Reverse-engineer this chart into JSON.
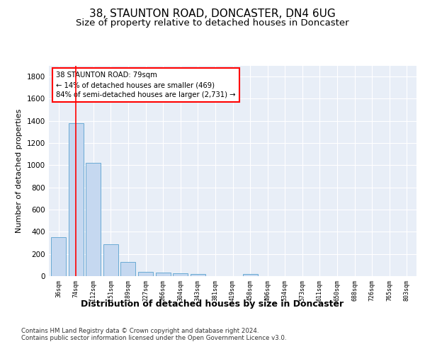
{
  "title1": "38, STAUNTON ROAD, DONCASTER, DN4 6UG",
  "title2": "Size of property relative to detached houses in Doncaster",
  "xlabel": "Distribution of detached houses by size in Doncaster",
  "ylabel": "Number of detached properties",
  "categories": [
    "36sqm",
    "74sqm",
    "112sqm",
    "151sqm",
    "189sqm",
    "227sqm",
    "266sqm",
    "304sqm",
    "343sqm",
    "381sqm",
    "419sqm",
    "458sqm",
    "496sqm",
    "534sqm",
    "573sqm",
    "611sqm",
    "650sqm",
    "688sqm",
    "726sqm",
    "765sqm",
    "803sqm"
  ],
  "values": [
    350,
    1380,
    1020,
    285,
    125,
    38,
    35,
    25,
    18,
    0,
    0,
    22,
    0,
    0,
    0,
    0,
    0,
    0,
    0,
    0,
    0
  ],
  "bar_color": "#c5d8f0",
  "bar_edge_color": "#6aaad4",
  "vline_x": 1,
  "vline_color": "red",
  "annotation_text": "38 STAUNTON ROAD: 79sqm\n← 14% of detached houses are smaller (469)\n84% of semi-detached houses are larger (2,731) →",
  "annotation_box_color": "white",
  "annotation_box_edge": "red",
  "ylim": [
    0,
    1900
  ],
  "yticks": [
    0,
    200,
    400,
    600,
    800,
    1000,
    1200,
    1400,
    1600,
    1800
  ],
  "background_color": "#e8eef7",
  "footer": "Contains HM Land Registry data © Crown copyright and database right 2024.\nContains public sector information licensed under the Open Government Licence v3.0.",
  "title1_fontsize": 11,
  "title2_fontsize": 9.5,
  "xlabel_fontsize": 9,
  "ylabel_fontsize": 8
}
